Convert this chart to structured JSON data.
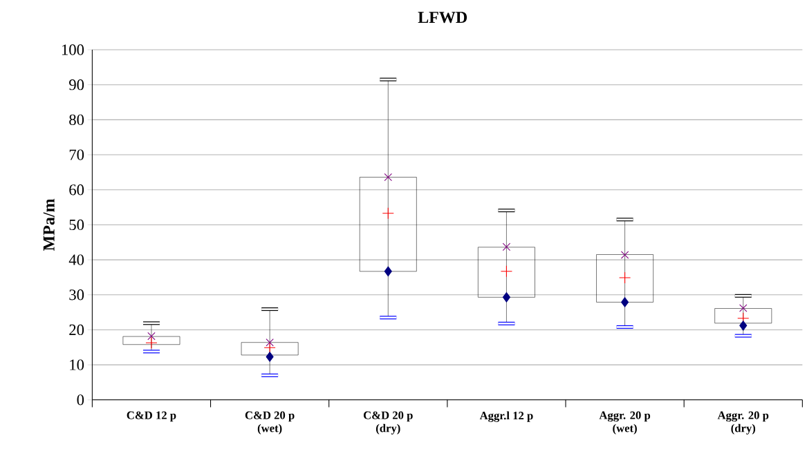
{
  "chart_data": {
    "type": "box",
    "title": "LFWD",
    "ylabel": "MPa/m",
    "categories": [
      "C&D 12 p",
      "C&D 20 p (wet)",
      "C&D 20 p (dry)",
      "Aggr.l 12 p",
      "Aggr. 20 p (wet)",
      "Aggr. 20 p (dry)"
    ],
    "ylim": [
      0,
      100
    ],
    "yticks": [
      0,
      10,
      20,
      30,
      40,
      50,
      60,
      70,
      80,
      90,
      100
    ],
    "grid": "y",
    "series": [
      {
        "type": "box",
        "color": "#000000",
        "boxes": [
          {
            "low": 13.8,
            "q1": 15.8,
            "median": 16.3,
            "q3": 18.1,
            "high": 21.9
          },
          {
            "low": 7.0,
            "q1": 12.8,
            "median": 14.9,
            "q3": 16.4,
            "high": 25.9
          },
          {
            "low": 23.5,
            "q1": 36.7,
            "median": 53.3,
            "q3": 63.6,
            "high": 91.5
          },
          {
            "low": 21.8,
            "q1": 29.3,
            "median": 36.7,
            "q3": 43.6,
            "high": 54.1
          },
          {
            "low": 20.8,
            "q1": 27.9,
            "median": 34.9,
            "q3": 41.5,
            "high": 51.5
          },
          {
            "low": 18.3,
            "q1": 21.9,
            "median": 23.3,
            "q3": 26.1,
            "high": 29.7
          }
        ]
      },
      {
        "type": "scatter",
        "color": "#000080",
        "marker": "diamond",
        "values": [
          null,
          12.3,
          36.7,
          29.3,
          27.9,
          21.2
        ]
      },
      {
        "type": "scatter",
        "color": "#800080",
        "marker": "cross",
        "values": [
          18.2,
          16.4,
          63.6,
          43.7,
          41.4,
          26.2
        ]
      }
    ]
  }
}
